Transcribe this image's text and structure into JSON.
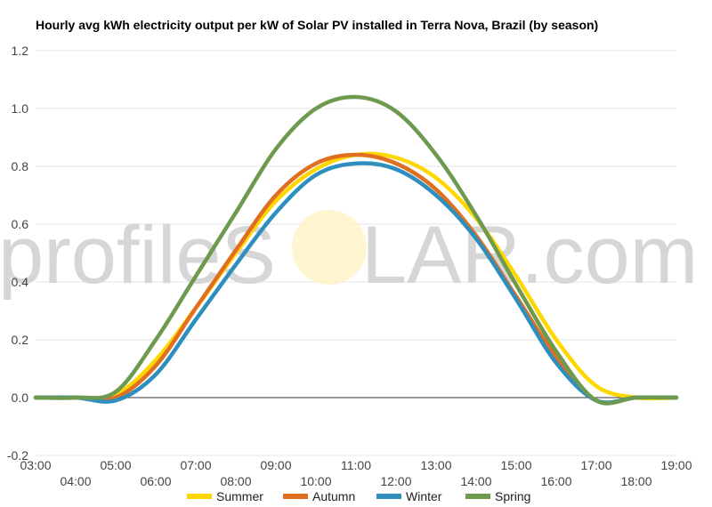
{
  "chart_data": {
    "type": "line",
    "title": "Hourly avg kWh electricity output per kW of Solar PV installed in Terra Nova, Brazil (by season)",
    "watermark": {
      "left": "profileS",
      "right": "LAR.com"
    },
    "x_ticks_top": [
      "03:00",
      "05:00",
      "07:00",
      "09:00",
      "11:00",
      "13:00",
      "15:00",
      "17:00",
      "19:00"
    ],
    "x_ticks_bottom": [
      "04:00",
      "06:00",
      "08:00",
      "10:00",
      "12:00",
      "14:00",
      "16:00",
      "18:00"
    ],
    "y_ticks": [
      "1.2",
      "1.0",
      "0.8",
      "0.6",
      "0.4",
      "0.2",
      "0.0",
      "-0.2"
    ],
    "ylim": [
      -0.2,
      1.2
    ],
    "xlim": [
      3,
      19
    ],
    "grid": true,
    "legend_position": "bottom",
    "x": [
      3,
      4,
      5,
      6,
      7,
      8,
      9,
      10,
      11,
      12,
      13,
      14,
      15,
      16,
      17,
      18,
      19
    ],
    "series": [
      {
        "name": "Summer",
        "color": "#FFD700",
        "values": [
          0,
          0,
          0.01,
          0.13,
          0.31,
          0.5,
          0.68,
          0.79,
          0.84,
          0.83,
          0.76,
          0.62,
          0.42,
          0.2,
          0.04,
          0,
          0
        ]
      },
      {
        "name": "Autumn",
        "color": "#E07020",
        "values": [
          0,
          0,
          0,
          0.11,
          0.31,
          0.51,
          0.7,
          0.81,
          0.84,
          0.81,
          0.72,
          0.56,
          0.35,
          0.14,
          -0.01,
          0,
          0
        ]
      },
      {
        "name": "Winter",
        "color": "#2E8FBF",
        "values": [
          0,
          0,
          -0.01,
          0.08,
          0.27,
          0.46,
          0.64,
          0.77,
          0.81,
          0.79,
          0.7,
          0.55,
          0.34,
          0.12,
          -0.01,
          0,
          0
        ]
      },
      {
        "name": "Spring",
        "color": "#6E9A50",
        "values": [
          0,
          0,
          0.02,
          0.2,
          0.42,
          0.64,
          0.86,
          1.0,
          1.04,
          0.99,
          0.84,
          0.63,
          0.39,
          0.16,
          -0.01,
          0,
          0
        ]
      }
    ]
  }
}
